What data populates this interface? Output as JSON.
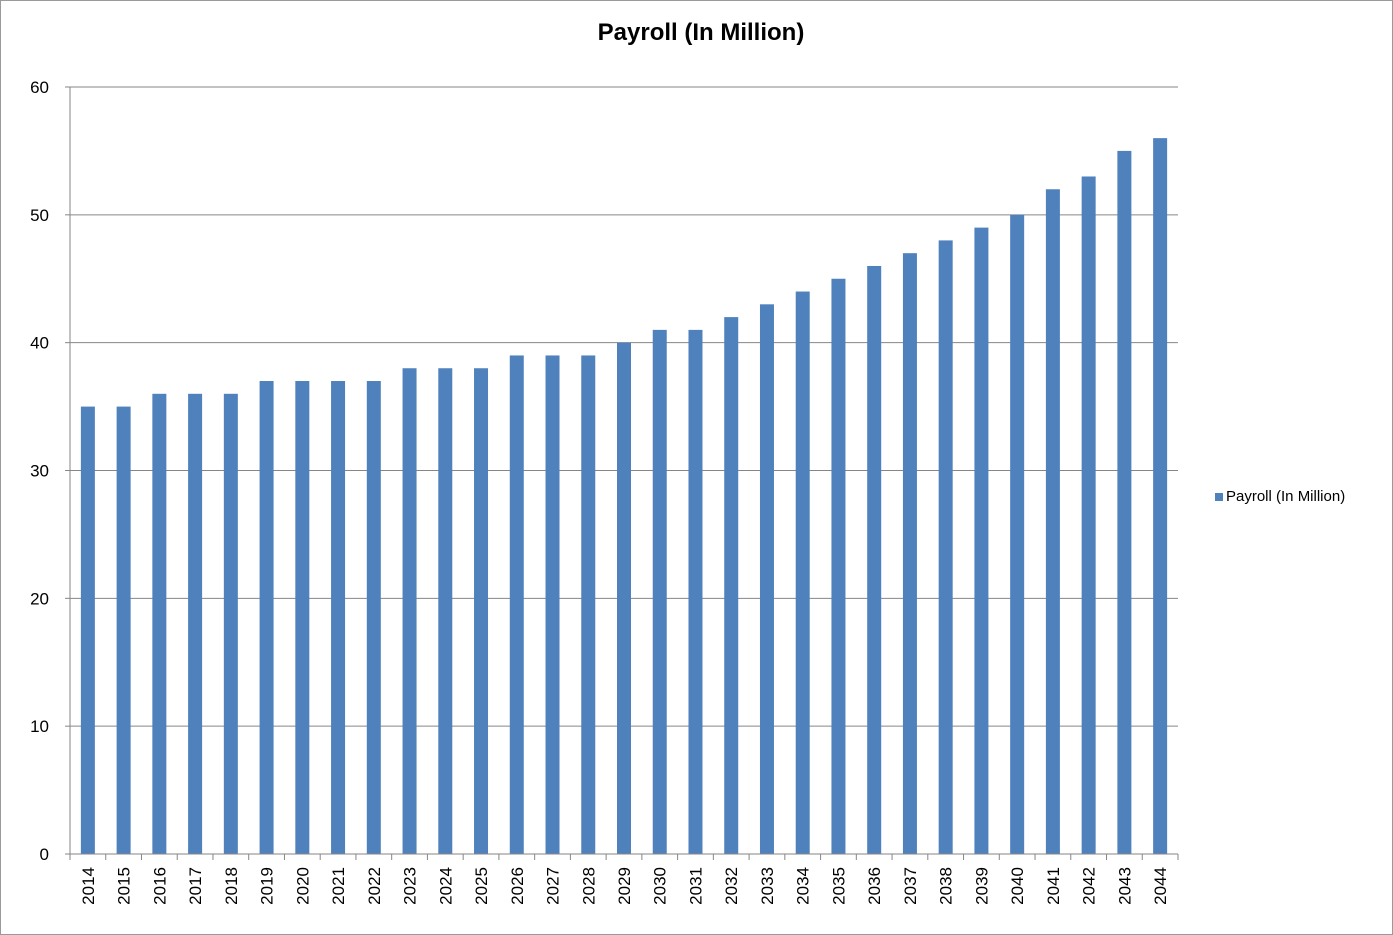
{
  "chart_data": {
    "type": "bar",
    "title": "Payroll (In Million)",
    "xlabel": "",
    "ylabel": "",
    "categories": [
      "2014",
      "2015",
      "2016",
      "2017",
      "2018",
      "2019",
      "2020",
      "2021",
      "2022",
      "2023",
      "2024",
      "2025",
      "2026",
      "2027",
      "2028",
      "2029",
      "2030",
      "2031",
      "2032",
      "2033",
      "2034",
      "2035",
      "2036",
      "2037",
      "2038",
      "2039",
      "2040",
      "2041",
      "2042",
      "2043",
      "2044"
    ],
    "series": [
      {
        "name": "Payroll (In Million)",
        "color": "#4f81bd",
        "values": [
          35,
          35,
          36,
          36,
          36,
          37,
          37,
          37,
          37,
          38,
          38,
          38,
          39,
          39,
          39,
          40,
          41,
          41,
          42,
          43,
          44,
          45,
          46,
          47,
          48,
          49,
          50,
          52,
          53,
          55,
          56
        ]
      }
    ],
    "ylim": [
      0,
      60
    ],
    "yticks": [
      0,
      10,
      20,
      30,
      40,
      50,
      60
    ],
    "grid": true,
    "legend_position": "right"
  }
}
